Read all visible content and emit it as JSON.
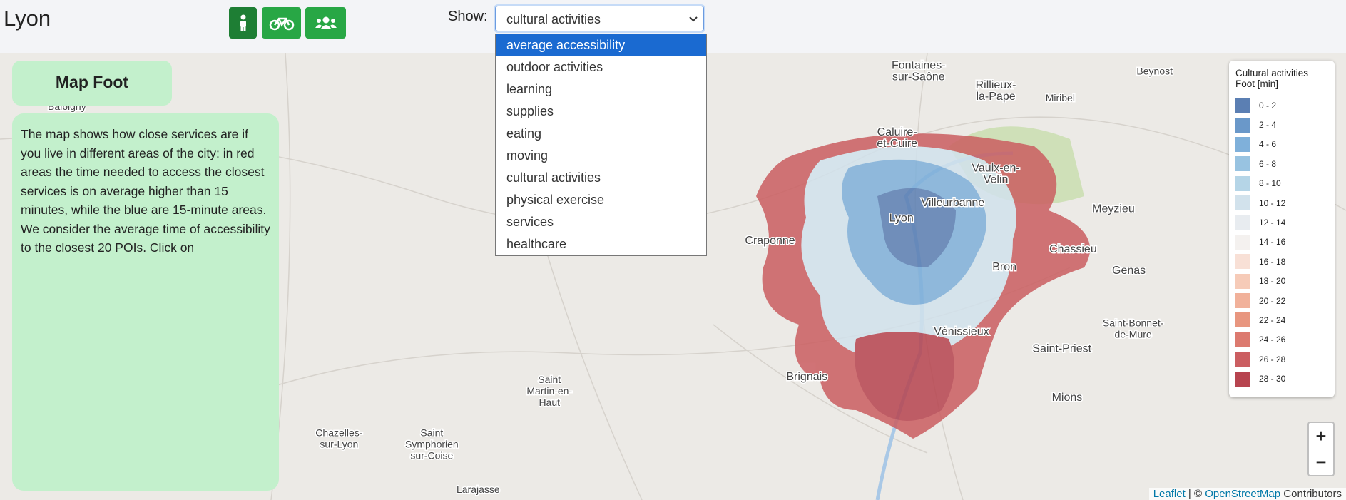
{
  "header": {
    "title": "Lyon",
    "show_label": "Show:",
    "selected": "cultural activities"
  },
  "dropdown": {
    "options": [
      "average accessibility",
      "outdoor activities",
      "learning",
      "supplies",
      "eating",
      "moving",
      "cultural activities",
      "physical exercise",
      "services",
      "healthcare"
    ],
    "highlighted": 0
  },
  "panel": {
    "title": "Map Foot",
    "text": "The map shows how close services are if you live in different areas of the city: in red areas the time needed to access the closest services is on average higher than 15 minutes, while the blue are 15-minute areas. We consider the average time of accessibility to the closest 20 POIs. Click on"
  },
  "legend": {
    "title_lines": [
      "Cultural activities",
      "Foot [min]"
    ],
    "items": [
      {
        "label": "0 - 2",
        "color": "#5b7fb3"
      },
      {
        "label": "2 - 4",
        "color": "#6a98c9"
      },
      {
        "label": "4 - 6",
        "color": "#7fb0da"
      },
      {
        "label": "6 - 8",
        "color": "#98c3e1"
      },
      {
        "label": "8 - 10",
        "color": "#b5d5e7"
      },
      {
        "label": "10 - 12",
        "color": "#d2e2ec"
      },
      {
        "label": "12 - 14",
        "color": "#e8ecf0"
      },
      {
        "label": "14 - 16",
        "color": "#f4f1ef"
      },
      {
        "label": "16 - 18",
        "color": "#f8e0d6"
      },
      {
        "label": "18 - 20",
        "color": "#f6cbb8"
      },
      {
        "label": "20 - 22",
        "color": "#f1b19a"
      },
      {
        "label": "22 - 24",
        "color": "#e8967f"
      },
      {
        "label": "24 - 26",
        "color": "#dc7a6f"
      },
      {
        "label": "26 - 28",
        "color": "#cb5e61"
      },
      {
        "label": "28 - 30",
        "color": "#b7444f"
      }
    ]
  },
  "zoom": {
    "in": "+",
    "out": "−"
  },
  "attribution": {
    "leaflet": "Leaflet",
    "separator": "| ©",
    "osm": "OpenStreetMap",
    "contributors": "Contributors"
  },
  "map_labels": [
    [
      "Fontaines-",
      "sur-Saône"
    ],
    [
      "Rillieux-",
      "la-Pape"
    ],
    [
      "Caluire-",
      "et-Cuire"
    ],
    [
      "Villeurbanne"
    ],
    [
      "Lyon"
    ],
    [
      "Vaulx-en-",
      "Velin"
    ],
    [
      "Meyzieu"
    ],
    [
      "Chassieu"
    ],
    [
      "Bron"
    ],
    [
      "Genas"
    ],
    [
      "Vénissieux"
    ],
    [
      "Saint-Priest"
    ],
    [
      "Craponne"
    ],
    [
      "Brignais"
    ],
    [
      "Mions"
    ],
    [
      "Saint",
      "Martin-en-",
      "Haut"
    ],
    [
      "Chazelles-",
      "sur-Lyon"
    ],
    [
      "Saint",
      "Symphorien",
      "sur-Coise"
    ],
    [
      "Larajasse"
    ],
    [
      "Balbigny"
    ],
    [
      "Saint-Bonnet-",
      "de-Mure"
    ],
    [
      "Miribel"
    ],
    [
      "Beynost"
    ]
  ]
}
